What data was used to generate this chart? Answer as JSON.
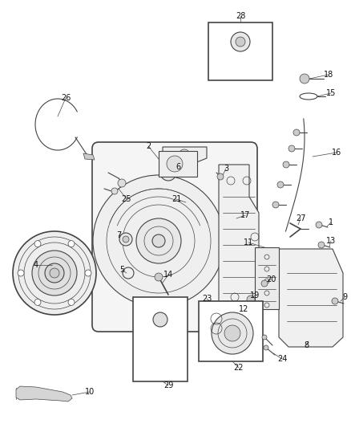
{
  "background_color": "#ffffff",
  "fig_width": 4.38,
  "fig_height": 5.33,
  "dpi": 100,
  "line_color": "#444444",
  "label_color": "#111111",
  "font_size": 7.0
}
